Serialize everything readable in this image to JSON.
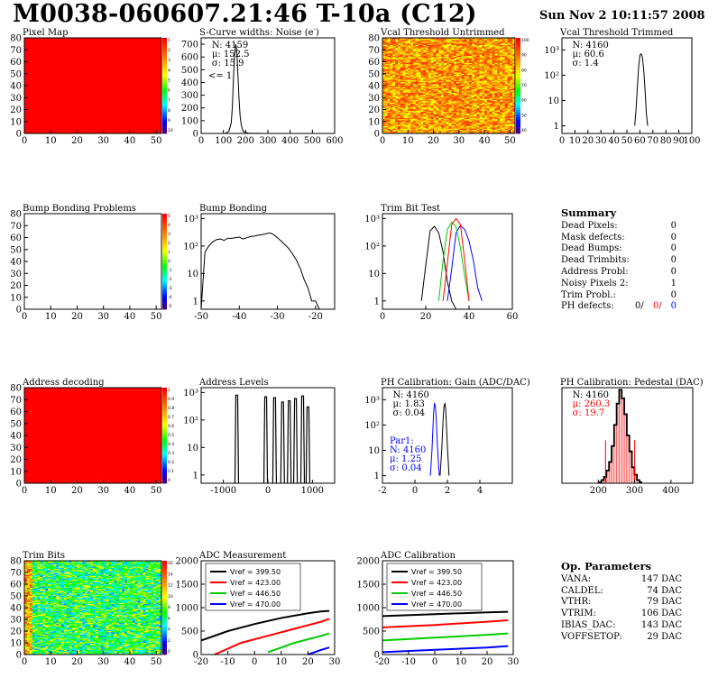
{
  "header": {
    "title": "M0038-060607.21:46 T-10a (C12)",
    "date": "Sun Nov  2 10:11:57 2008"
  },
  "colors": {
    "map_red": "#ff0000",
    "vref_1": "#000000",
    "vref_2": "#ff0000",
    "vref_3": "#00cc00",
    "vref_4": "#0000ff",
    "par1_blue": "#0000ff",
    "pedestal_red": "#ff0000"
  },
  "summary": {
    "title": "Summary",
    "rows": [
      {
        "label": "Dead Pixels:",
        "value": "0"
      },
      {
        "label": "Mask defects:",
        "value": "0"
      },
      {
        "label": "Dead Bumps:",
        "value": "0"
      },
      {
        "label": "Dead Trimbits:",
        "value": "0"
      },
      {
        "label": "Address Probl:",
        "value": "0"
      },
      {
        "label": "Noisy Pixels 2:",
        "value": "1"
      },
      {
        "label": "Trim Probl.:",
        "value": "0"
      }
    ],
    "ph_label": "PH defects:",
    "ph_values": [
      "0/",
      "0/",
      "0"
    ]
  },
  "op_params": {
    "title": "Op. Parameters",
    "rows": [
      {
        "label": "VANA:",
        "value": "147 DAC"
      },
      {
        "label": "CALDEL:",
        "value": "74 DAC"
      },
      {
        "label": "VTHR:",
        "value": "79 DAC"
      },
      {
        "label": "VTRIM:",
        "value": "106 DAC"
      },
      {
        "label": "IBIAS_DAC:",
        "value": "143 DAC"
      },
      {
        "label": "VOFFSETOP:",
        "value": "29 DAC"
      }
    ]
  },
  "chart_data": [
    {
      "type": "heatmap",
      "title": "Pixel Map",
      "xlim": [
        0,
        52
      ],
      "ylim": [
        0,
        80
      ],
      "xticks": [
        "0",
        "10",
        "20",
        "30",
        "40",
        "50"
      ],
      "yticks": [
        "0",
        "10",
        "20",
        "30",
        "40",
        "50",
        "60",
        "70",
        "80"
      ],
      "fill": "uniform red",
      "zmax": 10,
      "zticks": [
        "1",
        "2",
        "3",
        "4",
        "5",
        "6",
        "7",
        "8",
        "9",
        "10"
      ]
    },
    {
      "type": "line",
      "title": "S-Curve widths: Noise (e",
      "title_sup": "-",
      "title_end": ")",
      "xlim": [
        0,
        600
      ],
      "ylim": [
        0,
        750
      ],
      "xticks": [
        "0",
        "100",
        "200",
        "300",
        "400",
        "500",
        "600"
      ],
      "yticks": [
        "0",
        "100",
        "200",
        "300",
        "400",
        "500",
        "600",
        "700"
      ],
      "stats": [
        "N: 4159",
        "μ: 152.5",
        "σ: 15.9"
      ],
      "annotation": "<= 1",
      "x": [
        105,
        115,
        125,
        135,
        140,
        145,
        150,
        155,
        160,
        165,
        170,
        175,
        180,
        185,
        190,
        200,
        210,
        220,
        240,
        260,
        280,
        300
      ],
      "y": [
        0,
        5,
        20,
        80,
        200,
        420,
        610,
        700,
        660,
        470,
        280,
        140,
        70,
        35,
        15,
        6,
        3,
        2,
        1,
        1,
        0,
        0
      ]
    },
    {
      "type": "heatmap",
      "title": "Vcal Threshold Untrimmed",
      "xlim": [
        0,
        52
      ],
      "ylim": [
        0,
        80
      ],
      "xticks": [
        "0",
        "10",
        "20",
        "30",
        "40",
        "50"
      ],
      "yticks": [
        "0",
        "10",
        "20",
        "30",
        "40",
        "50",
        "60",
        "70",
        "80"
      ],
      "fill": "orange-yellow noise",
      "zticks": [
        "100",
        "90",
        "80",
        "70",
        "60",
        "50",
        "40"
      ]
    },
    {
      "type": "line",
      "title": "Vcal Threshold Trimmed",
      "log_y": true,
      "xlim": [
        0,
        100
      ],
      "ylim": [
        0.5,
        3000
      ],
      "xticks": [
        "0",
        "10",
        "20",
        "30",
        "40",
        "50",
        "60",
        "70",
        "80",
        "90",
        "100"
      ],
      "yticks": [
        "1",
        "10",
        "10²",
        "10³"
      ],
      "stats": [
        "N: 4160",
        "μ: 60.6",
        "σ:  1.4"
      ],
      "x": [
        56,
        57,
        58,
        59,
        60,
        61,
        62,
        63,
        64,
        65,
        66
      ],
      "y": [
        1,
        4,
        30,
        200,
        620,
        700,
        500,
        150,
        25,
        3,
        1
      ]
    },
    {
      "type": "heatmap",
      "title": "Bump Bonding Problems",
      "xlim": [
        0,
        52
      ],
      "ylim": [
        0,
        80
      ],
      "xticks": [
        "0",
        "10",
        "20",
        "30",
        "40",
        "50"
      ],
      "yticks": [
        "0",
        "10",
        "20",
        "30",
        "40",
        "50",
        "60",
        "70",
        "80"
      ],
      "fill": "empty",
      "zticks": [
        "5",
        "4",
        "3",
        "2",
        "1",
        "0",
        "-1",
        "-2",
        "-3",
        "-4",
        "-5"
      ]
    },
    {
      "type": "line",
      "title": "Bump Bonding",
      "log_y": true,
      "xlim": [
        -50,
        -15
      ],
      "ylim": [
        0.5,
        1500
      ],
      "xticks": [
        "-50",
        "-40",
        "-30",
        "-20"
      ],
      "yticks": [
        "1",
        "10",
        "10²",
        "10³"
      ],
      "x": [
        -50,
        -49,
        -48,
        -47,
        -46,
        -45,
        -44,
        -43,
        -42,
        -41,
        -40,
        -39,
        -38,
        -37,
        -36,
        -35,
        -34,
        -33,
        -32,
        -31,
        -30,
        -29,
        -28,
        -27,
        -26,
        -25,
        -24,
        -23,
        -22,
        -21,
        -20,
        -19
      ],
      "y": [
        0,
        60,
        100,
        140,
        170,
        180,
        160,
        190,
        190,
        200,
        210,
        180,
        200,
        220,
        230,
        250,
        260,
        280,
        300,
        260,
        200,
        150,
        110,
        80,
        50,
        30,
        15,
        6,
        3,
        1,
        1,
        0
      ]
    },
    {
      "type": "line",
      "title": "Trim Bit Test",
      "log_y": true,
      "xlim": [
        0,
        60
      ],
      "ylim": [
        0.5,
        1500
      ],
      "xticks": [
        "0",
        "20",
        "40",
        "60"
      ],
      "yticks": [
        "1",
        "10",
        "10²",
        "10³"
      ],
      "series": [
        {
          "color": "#000000",
          "x": [
            18,
            20,
            22,
            24,
            26,
            28,
            30,
            32,
            34
          ],
          "y": [
            1,
            20,
            350,
            520,
            300,
            60,
            5,
            1,
            0
          ]
        },
        {
          "color": "#0000ff",
          "x": [
            30,
            32,
            34,
            36,
            38,
            40,
            42,
            44,
            46
          ],
          "y": [
            1,
            15,
            300,
            560,
            400,
            150,
            30,
            3,
            1
          ]
        },
        {
          "color": "#00cc00",
          "x": [
            26,
            28,
            30,
            32,
            34,
            36,
            38,
            40
          ],
          "y": [
            1,
            30,
            400,
            750,
            500,
            90,
            8,
            1
          ]
        },
        {
          "color": "#ff0000",
          "x": [
            28,
            30,
            32,
            34,
            36,
            38,
            40
          ],
          "y": [
            1,
            25,
            600,
            1000,
            600,
            30,
            1
          ]
        }
      ]
    },
    {
      "type": "heatmap",
      "title": "Address decoding",
      "xlim": [
        0,
        52
      ],
      "ylim": [
        0,
        80
      ],
      "xticks": [
        "0",
        "10",
        "20",
        "30",
        "40",
        "50"
      ],
      "yticks": [
        "0",
        "10",
        "20",
        "30",
        "40",
        "50",
        "60",
        "70",
        "80"
      ],
      "fill": "uniform red",
      "zmax": 1,
      "zticks": [
        "1",
        "0.9",
        "0.8",
        "0.7",
        "0.6",
        "0.5",
        "0.4",
        "0.3",
        "0.2",
        "0.1",
        "0"
      ]
    },
    {
      "type": "line",
      "title": "Address Levels",
      "log_y": true,
      "xlim": [
        -1500,
        1500
      ],
      "ylim": [
        0.5,
        1500
      ],
      "xticks": [
        "-1000",
        "0",
        "1000"
      ],
      "yticks": [
        "1",
        "10",
        "10²",
        "10³"
      ],
      "peaks_x": [
        -700,
        -50,
        150,
        330,
        480,
        620,
        780,
        900
      ],
      "peaks_y": [
        800,
        700,
        650,
        450,
        500,
        600,
        750,
        300
      ]
    },
    {
      "type": "line",
      "title": "PH Calibration: Gain (ADC/DAC)",
      "log_y": true,
      "xlim": [
        -2,
        6
      ],
      "ylim": [
        0.5,
        3000
      ],
      "xticks": [
        "-2",
        "0",
        "2",
        "4"
      ],
      "yticks": [
        "1",
        "10",
        "10²",
        "10³"
      ],
      "stats": [
        "N: 4160",
        "μ: 1.83",
        "σ: 0.04"
      ],
      "par1_stats": [
        "Par1:",
        "N: 4160",
        "μ: 1.25",
        "σ: 0.04"
      ],
      "series": [
        {
          "name": "Par0",
          "color": "#000000",
          "x": [
            1.55,
            1.65,
            1.75,
            1.8,
            1.85,
            1.9,
            2.0,
            2.1
          ],
          "y": [
            1,
            10,
            250,
            600,
            700,
            350,
            15,
            1
          ]
        },
        {
          "name": "Par1",
          "color": "#0000ff",
          "x": [
            0.95,
            1.05,
            1.15,
            1.2,
            1.25,
            1.3,
            1.4,
            1.5
          ],
          "y": [
            1,
            10,
            300,
            700,
            600,
            250,
            10,
            1
          ]
        }
      ]
    },
    {
      "type": "bar",
      "title": "PH Calibration: Pedestal (DAC)",
      "xlim": [
        100,
        460
      ],
      "ylim": [
        0,
        90
      ],
      "xticks": [
        "200",
        "300",
        "400"
      ],
      "stats": [
        "N: 4160",
        "μ: 260.3",
        "σ: 19.7"
      ],
      "x": [
        205,
        212,
        219,
        226,
        233,
        240,
        247,
        254,
        261,
        268,
        275,
        282,
        289,
        296,
        303,
        310,
        317
      ],
      "y": [
        1,
        3,
        6,
        12,
        20,
        35,
        55,
        75,
        88,
        80,
        65,
        45,
        30,
        15,
        8,
        3,
        1
      ],
      "fit_markers": [
        220,
        300
      ]
    },
    {
      "type": "heatmap",
      "title": "Trim Bits",
      "xlim": [
        0,
        52
      ],
      "ylim": [
        0,
        80
      ],
      "xticks": [
        "0",
        "10",
        "20",
        "30",
        "40",
        "50"
      ],
      "yticks": [
        "0",
        "10",
        "20",
        "30",
        "40",
        "50",
        "60",
        "70",
        "80"
      ],
      "fill": "green-cyan noise",
      "zticks": [
        "16",
        "14",
        "12",
        "10",
        "8",
        "6",
        "4",
        "2",
        "0"
      ]
    },
    {
      "type": "line",
      "title": "ADC Measurement",
      "xlim": [
        -20,
        30
      ],
      "ylim": [
        0,
        2000
      ],
      "xticks": [
        "-20",
        "-10",
        "0",
        "10",
        "20",
        "30"
      ],
      "yticks": [
        "0",
        "500",
        "1000",
        "1500",
        "2000"
      ],
      "series": [
        {
          "name": "Vref = 399.50",
          "color": "#000000",
          "x": [
            -20,
            -10,
            0,
            10,
            20,
            25,
            28
          ],
          "y": [
            300,
            500,
            650,
            780,
            880,
            920,
            930
          ]
        },
        {
          "name": "Vref = 423.00",
          "color": "#ff0000",
          "x": [
            -15,
            -5,
            5,
            15,
            25,
            28
          ],
          "y": [
            0,
            250,
            400,
            550,
            700,
            760
          ]
        },
        {
          "name": "Vref = 446.50",
          "color": "#00cc00",
          "x": [
            5,
            15,
            25,
            28
          ],
          "y": [
            50,
            250,
            400,
            450
          ]
        },
        {
          "name": "Vref = 470.00",
          "color": "#0000ff",
          "x": [
            20,
            25,
            28
          ],
          "y": [
            0,
            100,
            150
          ]
        }
      ]
    },
    {
      "type": "line",
      "title": "ADC Calibration",
      "xlim": [
        -20,
        30
      ],
      "ylim": [
        0,
        2000
      ],
      "xticks": [
        "-20",
        "-10",
        "0",
        "10",
        "20",
        "30"
      ],
      "yticks": [
        "0",
        "500",
        "1000",
        "1500",
        "2000"
      ],
      "series": [
        {
          "name": "Vref = 399.50",
          "color": "#000000",
          "x": [
            -20,
            0,
            20,
            28
          ],
          "y": [
            820,
            860,
            900,
            910
          ]
        },
        {
          "name": "Vref = 423.00",
          "color": "#ff0000",
          "x": [
            -20,
            0,
            20,
            28
          ],
          "y": [
            580,
            630,
            700,
            730
          ]
        },
        {
          "name": "Vref = 446.50",
          "color": "#00cc00",
          "x": [
            -20,
            0,
            20,
            28
          ],
          "y": [
            300,
            360,
            420,
            450
          ]
        },
        {
          "name": "Vref = 470.00",
          "color": "#0000ff",
          "x": [
            -20,
            0,
            20,
            28
          ],
          "y": [
            50,
            100,
            150,
            180
          ]
        }
      ]
    }
  ]
}
